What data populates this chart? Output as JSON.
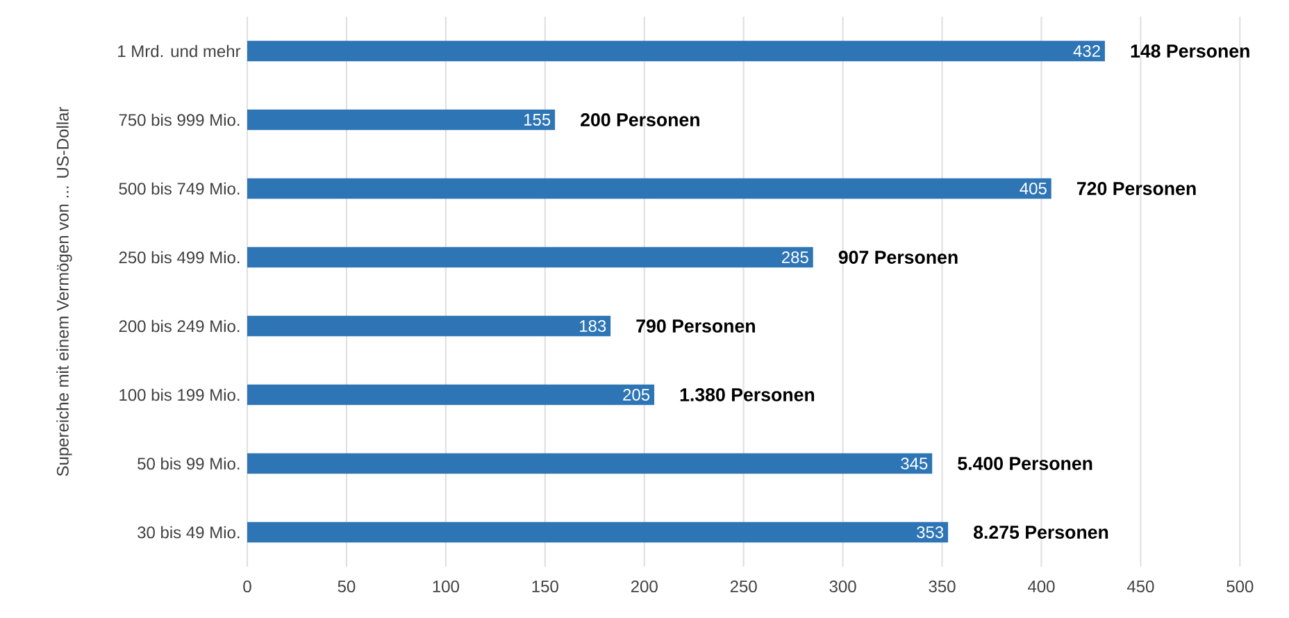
{
  "chart_data": {
    "type": "bar",
    "orientation": "horizontal",
    "ylabel": "Supereiche mit einem Vermögen von ... US-Dollar",
    "categories": [
      "1 Mrd. und mehr",
      "750 bis 999 Mio.",
      "500 bis 749 Mio.",
      "250 bis 499 Mio.",
      "200 bis 249 Mio.",
      "100 bis 199 Mio.",
      "50 bis 99 Mio.",
      "30 bis 49 Mio."
    ],
    "values": [
      432,
      155,
      405,
      285,
      183,
      205,
      345,
      353
    ],
    "color": "#2e75b6",
    "data_labels": true,
    "grid": "x",
    "xlim": [
      0,
      500
    ],
    "xticks": [
      0,
      50,
      100,
      150,
      200,
      250,
      300,
      350,
      400,
      450,
      500
    ],
    "annotations": [
      {
        "text": "148 Personen",
        "x": 432,
        "y": "1 Mrd. und mehr"
      },
      {
        "text": "200 Personen",
        "x": 155,
        "y": "750 bis 999 Mio."
      },
      {
        "text": "720 Personen",
        "x": 405,
        "y": "500 bis 749 Mio."
      },
      {
        "text": "907 Personen",
        "x": 285,
        "y": "250 bis 499 Mio."
      },
      {
        "text": "790 Personen",
        "x": 183,
        "y": "200 bis 249 Mio."
      },
      {
        "text": "1.380 Personen",
        "x": 205,
        "y": "100 bis 199 Mio."
      },
      {
        "text": "5.400 Personen",
        "x": 345,
        "y": "50 bis 99 Mio."
      },
      {
        "text": "8.275 Personen",
        "x": 353,
        "y": "30 bis 49 Mio."
      }
    ]
  }
}
